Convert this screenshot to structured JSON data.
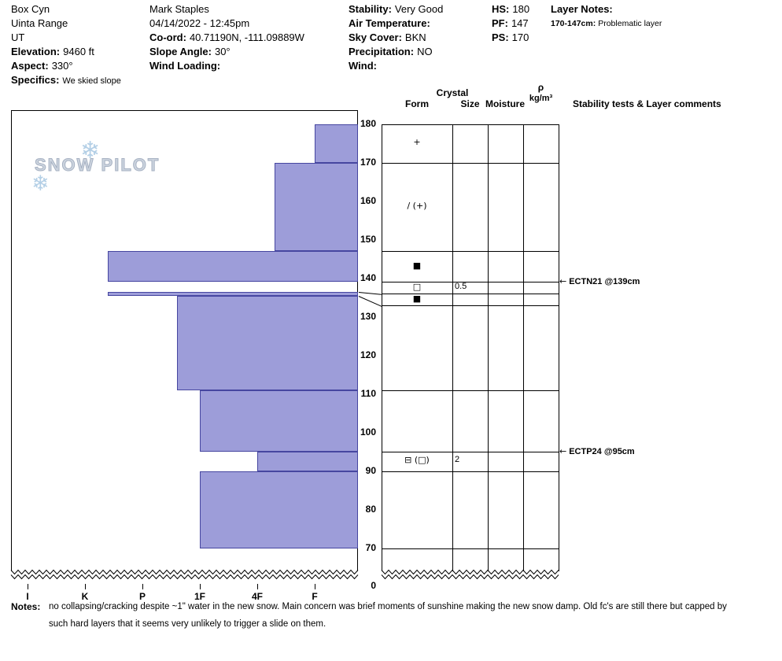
{
  "header": {
    "col1": {
      "line1": "Box Cyn",
      "line2": "Uinta Range",
      "line3": "UT",
      "elevation_label": "Elevation:",
      "elevation_value": "9460 ft",
      "aspect_label": "Aspect:",
      "aspect_value": "330°",
      "specifics_label": "Specifics:",
      "specifics_value": "We skied slope"
    },
    "col2": {
      "observer": "Mark Staples",
      "datetime": "04/14/2022 - 12:45pm",
      "coord_label": "Co-ord:",
      "coord_value": "40.71190N, -111.09889W",
      "slope_angle_label": "Slope Angle:",
      "slope_angle_value": "30°",
      "wind_loading_label": "Wind Loading:",
      "wind_loading_value": ""
    },
    "col3": {
      "stability_label": "Stability:",
      "stability_value": "Very Good",
      "air_temp_label": "Air Temperature:",
      "air_temp_value": "",
      "sky_label": "Sky Cover:",
      "sky_value": "BKN",
      "precip_label": "Precipitation:",
      "precip_value": "NO",
      "wind_label": "Wind:",
      "wind_value": ""
    },
    "col4": {
      "hs_label": "HS:",
      "hs_value": "180",
      "pf_label": "PF:",
      "pf_value": "147",
      "ps_label": "PS:",
      "ps_value": "170"
    },
    "layer_notes": {
      "title": "Layer Notes:",
      "items": [
        {
          "range": "170-147cm:",
          "note": "Problematic layer"
        }
      ]
    }
  },
  "watermark": {
    "text": "SNOW PILOT",
    "snowflake": "❄",
    "text_color": "#ccd4df",
    "flake_color": "#b3cfe6"
  },
  "chart_data": {
    "type": "bar",
    "subtype": "snow-hardness-profile",
    "orientation": "horizontal-bars-from-right-edge",
    "title": "",
    "hardness_axis": [
      "I",
      "K",
      "P",
      "1F",
      "4F",
      "F"
    ],
    "hardness_scale_note": "hardness_num: 1=F, 2=4F, 3=1F, 4=P, 5=K, 6=I, 0=off-scale soft (no bar)",
    "depth_ticks_cm": [
      180,
      170,
      160,
      150,
      140,
      130,
      120,
      110,
      100,
      90,
      80,
      70
    ],
    "axis_break_label": "0",
    "bar_fill": "#9d9dd9",
    "bar_border": "#4646a0",
    "layers": [
      {
        "top_cm": 180,
        "bottom_cm": 170,
        "hardness": "F",
        "hardness_num": 1.0,
        "form": "+",
        "size": "",
        "moisture": "",
        "density": ""
      },
      {
        "top_cm": 170,
        "bottom_cm": 147,
        "hardness": "4F-F",
        "hardness_num": 1.7,
        "form": "/ (+)",
        "size": "",
        "moisture": "",
        "density": ""
      },
      {
        "top_cm": 147,
        "bottom_cm": 139,
        "hardness": "K-",
        "hardness_num": 4.6,
        "form": "■",
        "size": "",
        "moisture": "",
        "density": ""
      },
      {
        "top_cm": 139,
        "bottom_cm": 136.5,
        "hardness": "F-",
        "hardness_num": 0,
        "form": "□",
        "size": "0.5",
        "moisture": "",
        "density": ""
      },
      {
        "top_cm": 136.5,
        "bottom_cm": 135.5,
        "hardness": "K-",
        "hardness_num": 4.6,
        "form": "■",
        "size": "",
        "moisture": "",
        "density": ""
      },
      {
        "top_cm": 135.5,
        "bottom_cm": 111,
        "hardness": "1F+",
        "hardness_num": 3.4,
        "form": "",
        "size": "",
        "moisture": "",
        "density": ""
      },
      {
        "top_cm": 111,
        "bottom_cm": 95,
        "hardness": "1F",
        "hardness_num": 3.0,
        "form": "",
        "size": "",
        "moisture": "",
        "density": ""
      },
      {
        "top_cm": 95,
        "bottom_cm": 90,
        "hardness": "4F",
        "hardness_num": 2.0,
        "form": "⊟ (□)",
        "size": "2",
        "moisture": "",
        "density": ""
      },
      {
        "top_cm": 90,
        "bottom_cm": 70,
        "hardness": "1F",
        "hardness_num": 3.0,
        "form": "",
        "size": "",
        "moisture": "",
        "density": ""
      }
    ],
    "stability_tests": [
      {
        "label": "ECTN21 @139cm",
        "depth_cm": 139
      },
      {
        "label": "ECTP24 @95cm",
        "depth_cm": 95
      }
    ],
    "table_headers": {
      "crystal": "Crystal",
      "form": "Form",
      "size": "Size",
      "moisture": "Moisture",
      "rho": "ρ",
      "rho_units": "kg/m³",
      "stability": "Stability tests & Layer comments"
    }
  },
  "notes": {
    "label": "Notes:",
    "lines": [
      "no collapsing/cracking despite ~1\" water in the new snow. Main concern was brief moments of sunshine making the new snow damp. Old fc's are still there but capped by",
      "such hard layers that it seems very unlikely to trigger a slide on them."
    ]
  }
}
